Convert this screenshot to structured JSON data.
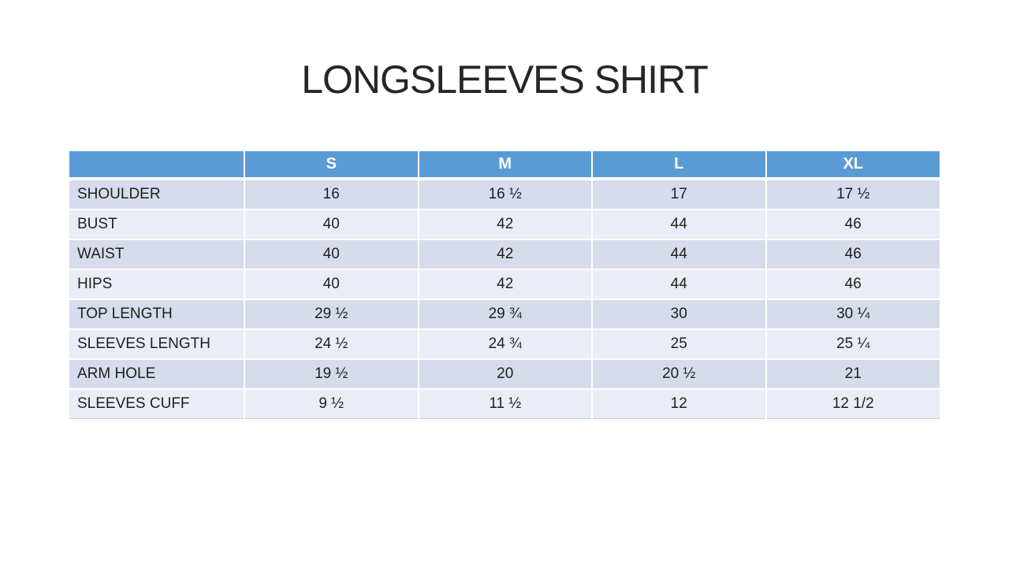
{
  "slide": {
    "title": "LONGSLEEVES SHIRT"
  },
  "table": {
    "columns": [
      "",
      "S",
      "M",
      "L",
      "XL"
    ],
    "rows": [
      {
        "label": "SHOULDER",
        "values": [
          "16",
          "16 ½",
          "17",
          "17 ½"
        ]
      },
      {
        "label": "BUST",
        "values": [
          "40",
          "42",
          "44",
          "46"
        ]
      },
      {
        "label": "WAIST",
        "values": [
          "40",
          "42",
          "44",
          "46"
        ]
      },
      {
        "label": "HIPS",
        "values": [
          "40",
          "42",
          "44",
          "46"
        ]
      },
      {
        "label": "TOP LENGTH",
        "values": [
          "29 ½",
          "29 ¾",
          "30",
          "30 ¼"
        ]
      },
      {
        "label": "SLEEVES LENGTH",
        "values": [
          "24 ½",
          "24 ¾",
          "25",
          "25 ¼"
        ]
      },
      {
        "label": "ARM HOLE",
        "values": [
          "19 ½",
          "20",
          "20 ½",
          "21"
        ]
      },
      {
        "label": "SLEEVES CUFF",
        "values": [
          "9 ½",
          "11 ½",
          "12",
          "12 1/2"
        ]
      }
    ],
    "colors": {
      "header_bg": "#5B9BD5",
      "header_text": "#FFFFFF",
      "band_dark": "#D6DCEB",
      "band_light": "#EAEDF5",
      "body_text": "#1F1F1F"
    }
  }
}
